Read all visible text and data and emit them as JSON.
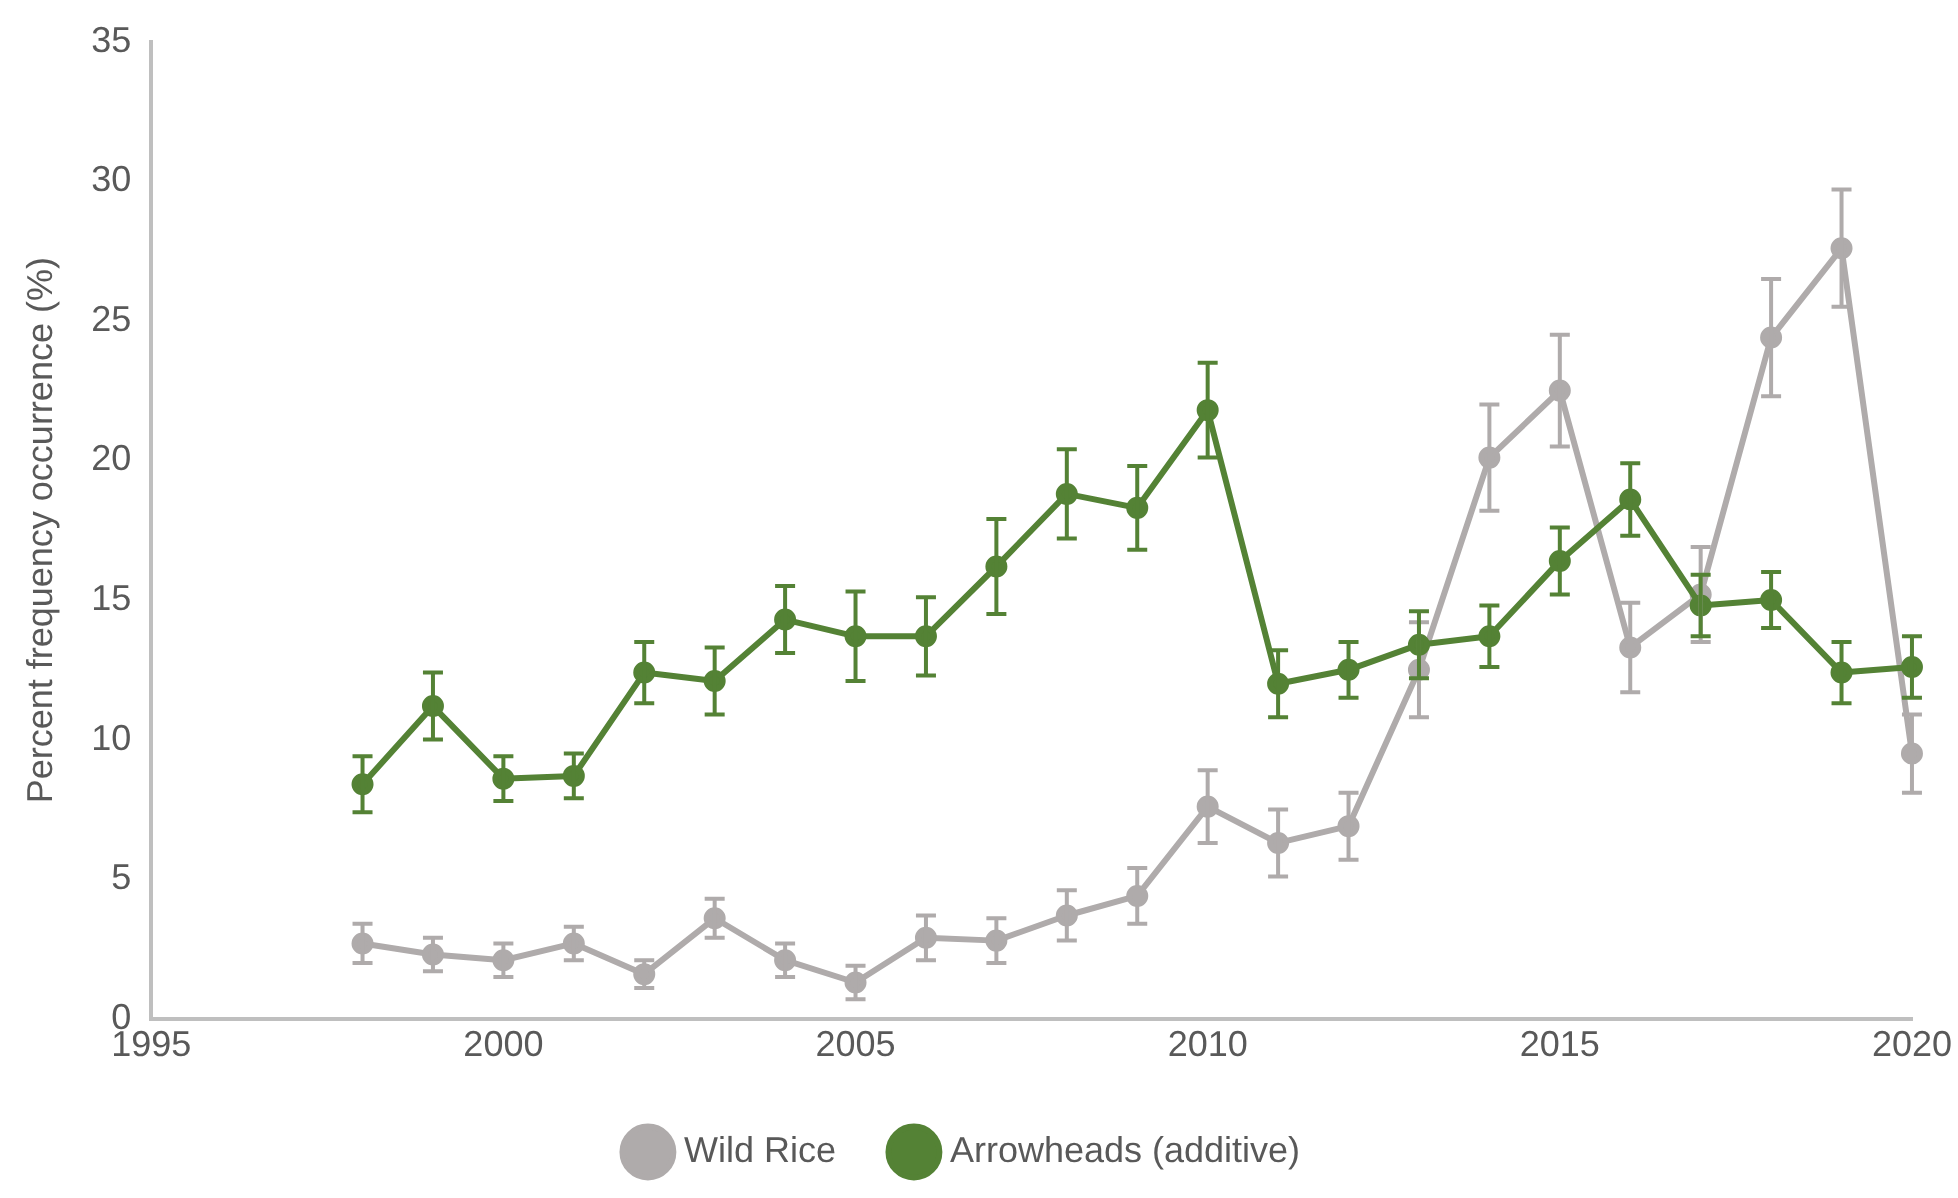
{
  "chart_data": {
    "type": "line",
    "ylabel": "Percent frequency occurrence (%)",
    "x": [
      1998,
      1999,
      2000,
      2001,
      2002,
      2003,
      2004,
      2005,
      2006,
      2007,
      2008,
      2009,
      2010,
      2011,
      2012,
      2013,
      2014,
      2015,
      2016,
      2017,
      2018,
      2019,
      2020
    ],
    "series": [
      {
        "name": "Wild Rice",
        "color": "#afabab",
        "values": [
          2.7,
          2.3,
          2.1,
          2.7,
          1.6,
          3.6,
          2.1,
          1.3,
          2.9,
          2.8,
          3.7,
          4.4,
          7.6,
          6.3,
          6.9,
          12.5,
          20.1,
          22.5,
          13.3,
          15.2,
          24.4,
          27.6,
          9.5
        ],
        "errors": [
          0.7,
          0.6,
          0.6,
          0.6,
          0.5,
          0.7,
          0.6,
          0.6,
          0.8,
          0.8,
          0.9,
          1.0,
          1.3,
          1.2,
          1.2,
          1.7,
          1.9,
          2.0,
          1.6,
          1.7,
          2.1,
          2.1,
          1.4
        ]
      },
      {
        "name": "Arrowheads (additive)",
        "color": "#548235",
        "values": [
          8.4,
          11.2,
          8.6,
          8.7,
          12.4,
          12.1,
          14.3,
          13.7,
          13.7,
          16.2,
          18.8,
          18.3,
          21.8,
          12.0,
          12.5,
          13.4,
          13.7,
          16.4,
          18.6,
          14.8,
          15.0,
          12.4,
          12.6
        ],
        "errors": [
          1.0,
          1.2,
          0.8,
          0.8,
          1.1,
          1.2,
          1.2,
          1.6,
          1.4,
          1.7,
          1.6,
          1.5,
          1.7,
          1.2,
          1.0,
          1.2,
          1.1,
          1.2,
          1.3,
          1.1,
          1.0,
          1.1,
          1.1
        ]
      }
    ],
    "xlim": [
      1995,
      2020
    ],
    "xticks": [
      1995,
      2000,
      2005,
      2010,
      2015,
      2020
    ],
    "ylim": [
      0,
      35
    ],
    "yticks": [
      0,
      5,
      10,
      15,
      20,
      25,
      30,
      35
    ],
    "grid": false,
    "legend": "bottom",
    "marker": "circle",
    "line_style": "solid"
  }
}
